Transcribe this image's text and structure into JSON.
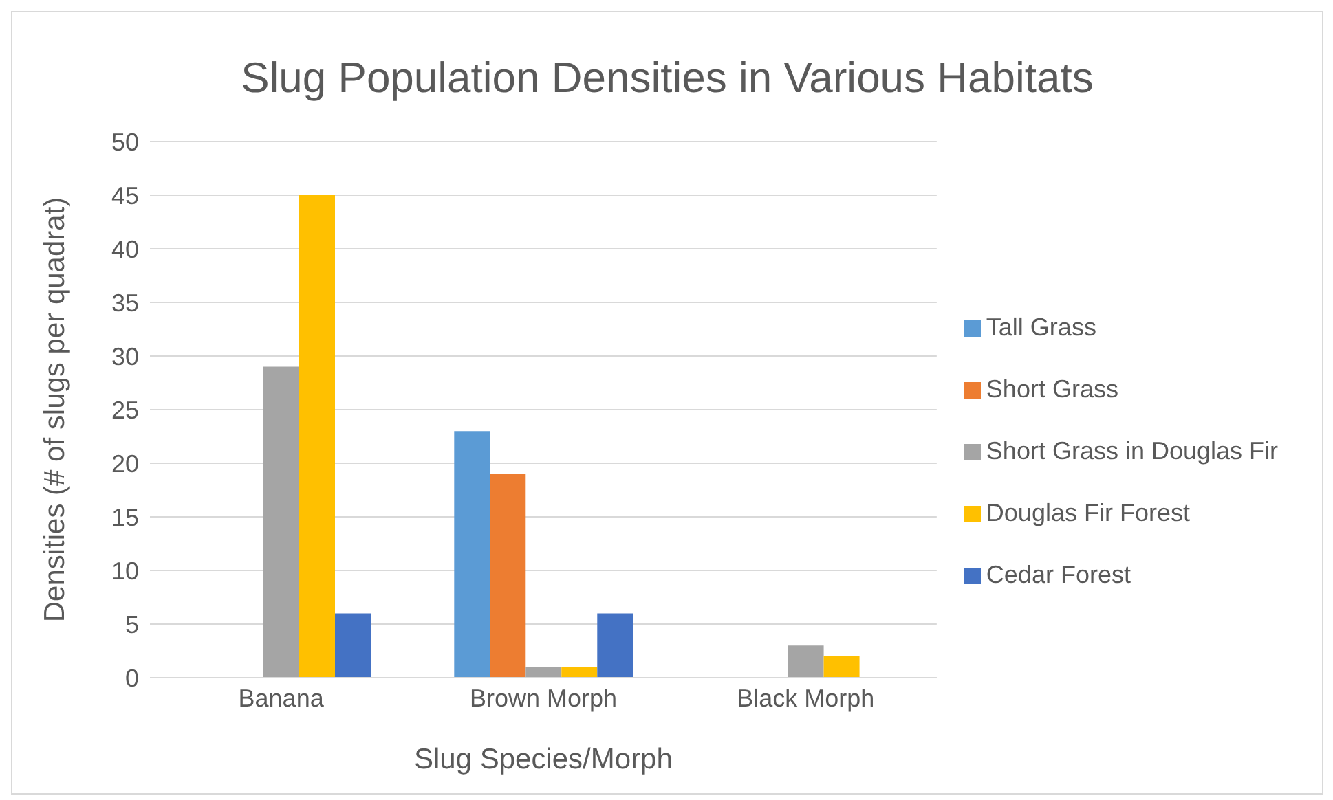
{
  "chart_data": {
    "type": "bar",
    "title": "Slug Population Densities in Various Habitats",
    "xlabel": "Slug Species/Morph",
    "ylabel": "Densities (# of slugs per quadrat)",
    "categories": [
      "Banana",
      "Brown Morph",
      "Black Morph"
    ],
    "series": [
      {
        "name": "Tall Grass",
        "color": "#5b9bd5",
        "values": [
          0,
          23,
          0
        ]
      },
      {
        "name": "Short Grass",
        "color": "#ed7d31",
        "values": [
          0,
          19,
          0
        ]
      },
      {
        "name": "Short Grass in Douglas Fir",
        "color": "#a5a5a5",
        "values": [
          29,
          1,
          3
        ]
      },
      {
        "name": "Douglas Fir Forest",
        "color": "#ffc000",
        "values": [
          45,
          1,
          2
        ]
      },
      {
        "name": "Cedar Forest",
        "color": "#4472c4",
        "values": [
          6,
          6,
          0
        ]
      }
    ],
    "ylim": [
      0,
      50
    ],
    "yticks": [
      0,
      5,
      10,
      15,
      20,
      25,
      30,
      35,
      40,
      45,
      50
    ],
    "grid": "y",
    "legend": "right"
  }
}
